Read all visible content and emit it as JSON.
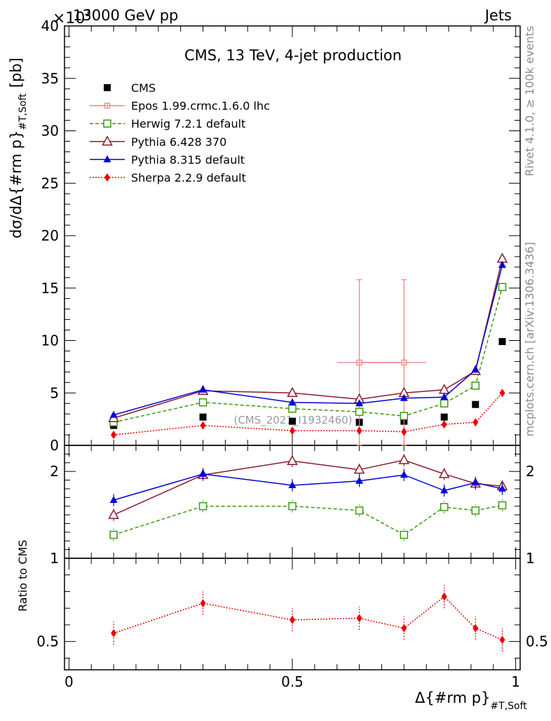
{
  "header": {
    "beam": "13000 GeV pp",
    "category": "Jets",
    "multiplier": "×10",
    "multiplier_exp": "3"
  },
  "side_labels": {
    "rivet": "Rivet 4.1.0, ≥ 100k events",
    "mcplots": "mcplots.cern.ch [arXiv:1306.3436]"
  },
  "watermark": "(CMS_2021_I1932460)",
  "axis_labels": {
    "y_main_prefix": "dσ/dΔ{#rm p}",
    "y_main_sub": "#T,Soft",
    "y_main_unit": "[pb]",
    "y_ratio": "Ratio to CMS",
    "x_prefix": "Δ{#rm p}",
    "x_sub": "#T,Soft"
  },
  "chart_data": {
    "type": "scatter",
    "title": "CMS, 13 TeV, 4-jet production",
    "x": [
      0.1,
      0.3,
      0.5,
      0.65,
      0.75,
      0.84,
      0.91,
      0.97
    ],
    "xlim": [
      -0.01,
      1.01
    ],
    "ylim": [
      0,
      40
    ],
    "yticks": [
      0,
      5,
      10,
      15,
      20,
      25,
      30,
      35,
      40
    ],
    "xticks": [
      0,
      0.5,
      1
    ],
    "ratio_upper_ylim": [
      1,
      2.3
    ],
    "ratio_upper_ticks": [
      1,
      2
    ],
    "ratio_lower_ylim": [
      0.33,
      1
    ],
    "ratio_lower_ticks": [
      0.5
    ],
    "series": [
      {
        "name": "CMS",
        "color": "#000000",
        "marker": "square",
        "values": [
          1.9,
          2.7,
          2.3,
          2.2,
          2.3,
          2.7,
          3.9,
          9.9
        ]
      },
      {
        "name": "Epos 1.99.crmc.1.6.0 lhc",
        "color": "#f08080",
        "marker": "cross",
        "x": [
          0.65,
          0.75
        ],
        "values": [
          7.9,
          7.9
        ],
        "err": [
          7.9,
          7.9
        ],
        "xerr": [
          0.05,
          0.05
        ]
      },
      {
        "name": "Herwig 7.2.1 default",
        "color": "#3a9a10",
        "marker": "open-square",
        "dash": "5,3",
        "values": [
          2.2,
          4.1,
          3.5,
          3.2,
          2.8,
          4.0,
          5.7,
          15.1
        ],
        "ratio": [
          1.27,
          1.6,
          1.6,
          1.55,
          1.27,
          1.59,
          1.55,
          1.61
        ]
      },
      {
        "name": "Pythia 6.428 370",
        "color": "#8b1a2a",
        "marker": "open-triangle",
        "values": [
          2.6,
          5.2,
          5.0,
          4.4,
          5.0,
          5.3,
          7.1,
          17.8
        ],
        "ratio": [
          1.5,
          1.96,
          2.12,
          2.02,
          2.13,
          1.97,
          1.86,
          1.83
        ]
      },
      {
        "name": "Pythia 8.315 default",
        "color": "#0000dd",
        "marker": "triangle",
        "values": [
          2.9,
          5.3,
          4.1,
          4.0,
          4.5,
          4.6,
          7.2,
          17.2
        ],
        "ratio": [
          1.67,
          1.97,
          1.84,
          1.89,
          1.96,
          1.78,
          1.87,
          1.8
        ]
      },
      {
        "name": "Sherpa 2.2.9 default",
        "color": "#ee0000",
        "marker": "diamond",
        "dash": "2,2",
        "values": [
          1.0,
          1.9,
          1.4,
          1.4,
          1.3,
          2.0,
          2.2,
          5.0
        ],
        "ratio": [
          0.55,
          0.73,
          0.63,
          0.64,
          0.58,
          0.77,
          0.58,
          0.51
        ]
      }
    ]
  }
}
